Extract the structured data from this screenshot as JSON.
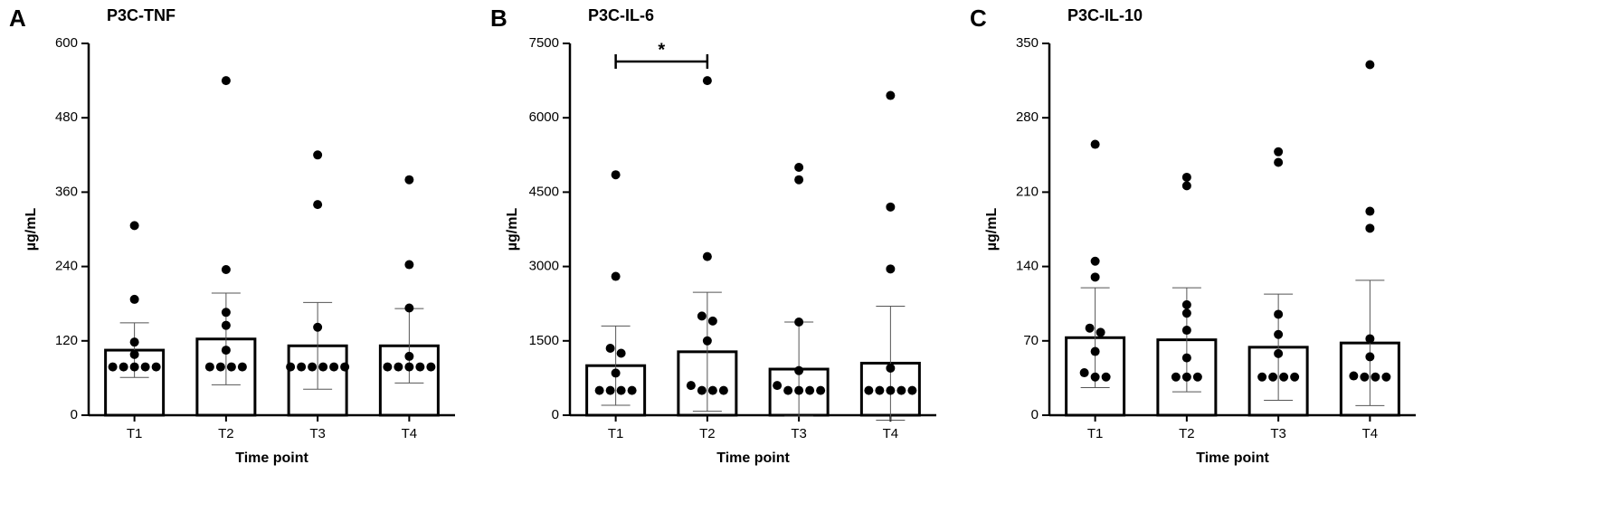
{
  "chart_data": [
    {
      "type": "bar",
      "panel_label": "A",
      "title": "P3C-TNF",
      "y_label": "µg/mL",
      "x_label": "Time point",
      "categories": [
        "T1",
        "T2",
        "T3",
        "T4"
      ],
      "values": [
        105,
        123,
        112,
        112
      ],
      "errors": [
        44,
        74,
        70,
        60
      ],
      "points": [
        [
          306,
          187,
          118,
          98,
          78,
          78,
          78,
          78,
          78
        ],
        [
          540,
          235,
          166,
          145,
          105,
          78,
          78,
          78,
          78
        ],
        [
          420,
          340,
          142,
          78,
          78,
          78,
          78,
          78,
          78
        ],
        [
          380,
          243,
          173,
          95,
          78,
          78,
          78,
          78,
          78
        ]
      ],
      "ylim": [
        0,
        600
      ],
      "yticks": [
        0,
        120,
        240,
        360,
        480,
        600
      ],
      "color": "#000000",
      "fill": "#ffffff"
    },
    {
      "type": "bar",
      "panel_label": "B",
      "title": "P3C-IL-6",
      "y_label": "µg/mL",
      "x_label": "Time point",
      "categories": [
        "T1",
        "T2",
        "T3",
        "T4"
      ],
      "values": [
        1000,
        1280,
        930,
        1050
      ],
      "errors": [
        800,
        1200,
        950,
        1150
      ],
      "points": [
        [
          4850,
          2800,
          1350,
          1250,
          850,
          500,
          500,
          500,
          500
        ],
        [
          6750,
          3200,
          2000,
          1900,
          1500,
          600,
          500,
          500,
          500
        ],
        [
          5000,
          4750,
          1880,
          900,
          600,
          500,
          500,
          500,
          500
        ],
        [
          6450,
          4200,
          2950,
          950,
          500,
          500,
          500,
          500,
          500
        ]
      ],
      "significance": {
        "label": "*",
        "between": [
          "T1",
          "T2"
        ]
      },
      "ylim": [
        0,
        7500
      ],
      "yticks": [
        0,
        1500,
        3000,
        4500,
        6000,
        7500
      ],
      "color": "#000000",
      "fill": "#ffffff"
    },
    {
      "type": "bar",
      "panel_label": "C",
      "title": "P3C-IL-10",
      "y_label": "µg/mL",
      "x_label": "Time point",
      "categories": [
        "T1",
        "T2",
        "T3",
        "T4"
      ],
      "values": [
        73,
        71,
        64,
        68
      ],
      "errors": [
        47,
        49,
        50,
        59
      ],
      "points": [
        [
          255,
          145,
          130,
          82,
          78,
          60,
          40,
          36,
          36
        ],
        [
          224,
          216,
          104,
          96,
          80,
          54,
          36,
          36,
          36
        ],
        [
          248,
          238,
          95,
          76,
          58,
          36,
          36,
          36,
          36
        ],
        [
          330,
          192,
          176,
          72,
          55,
          37,
          36,
          36,
          36
        ]
      ],
      "ylim": [
        0,
        350
      ],
      "yticks": [
        0,
        70,
        140,
        210,
        280,
        350
      ],
      "color": "#000000",
      "fill": "#ffffff"
    }
  ]
}
